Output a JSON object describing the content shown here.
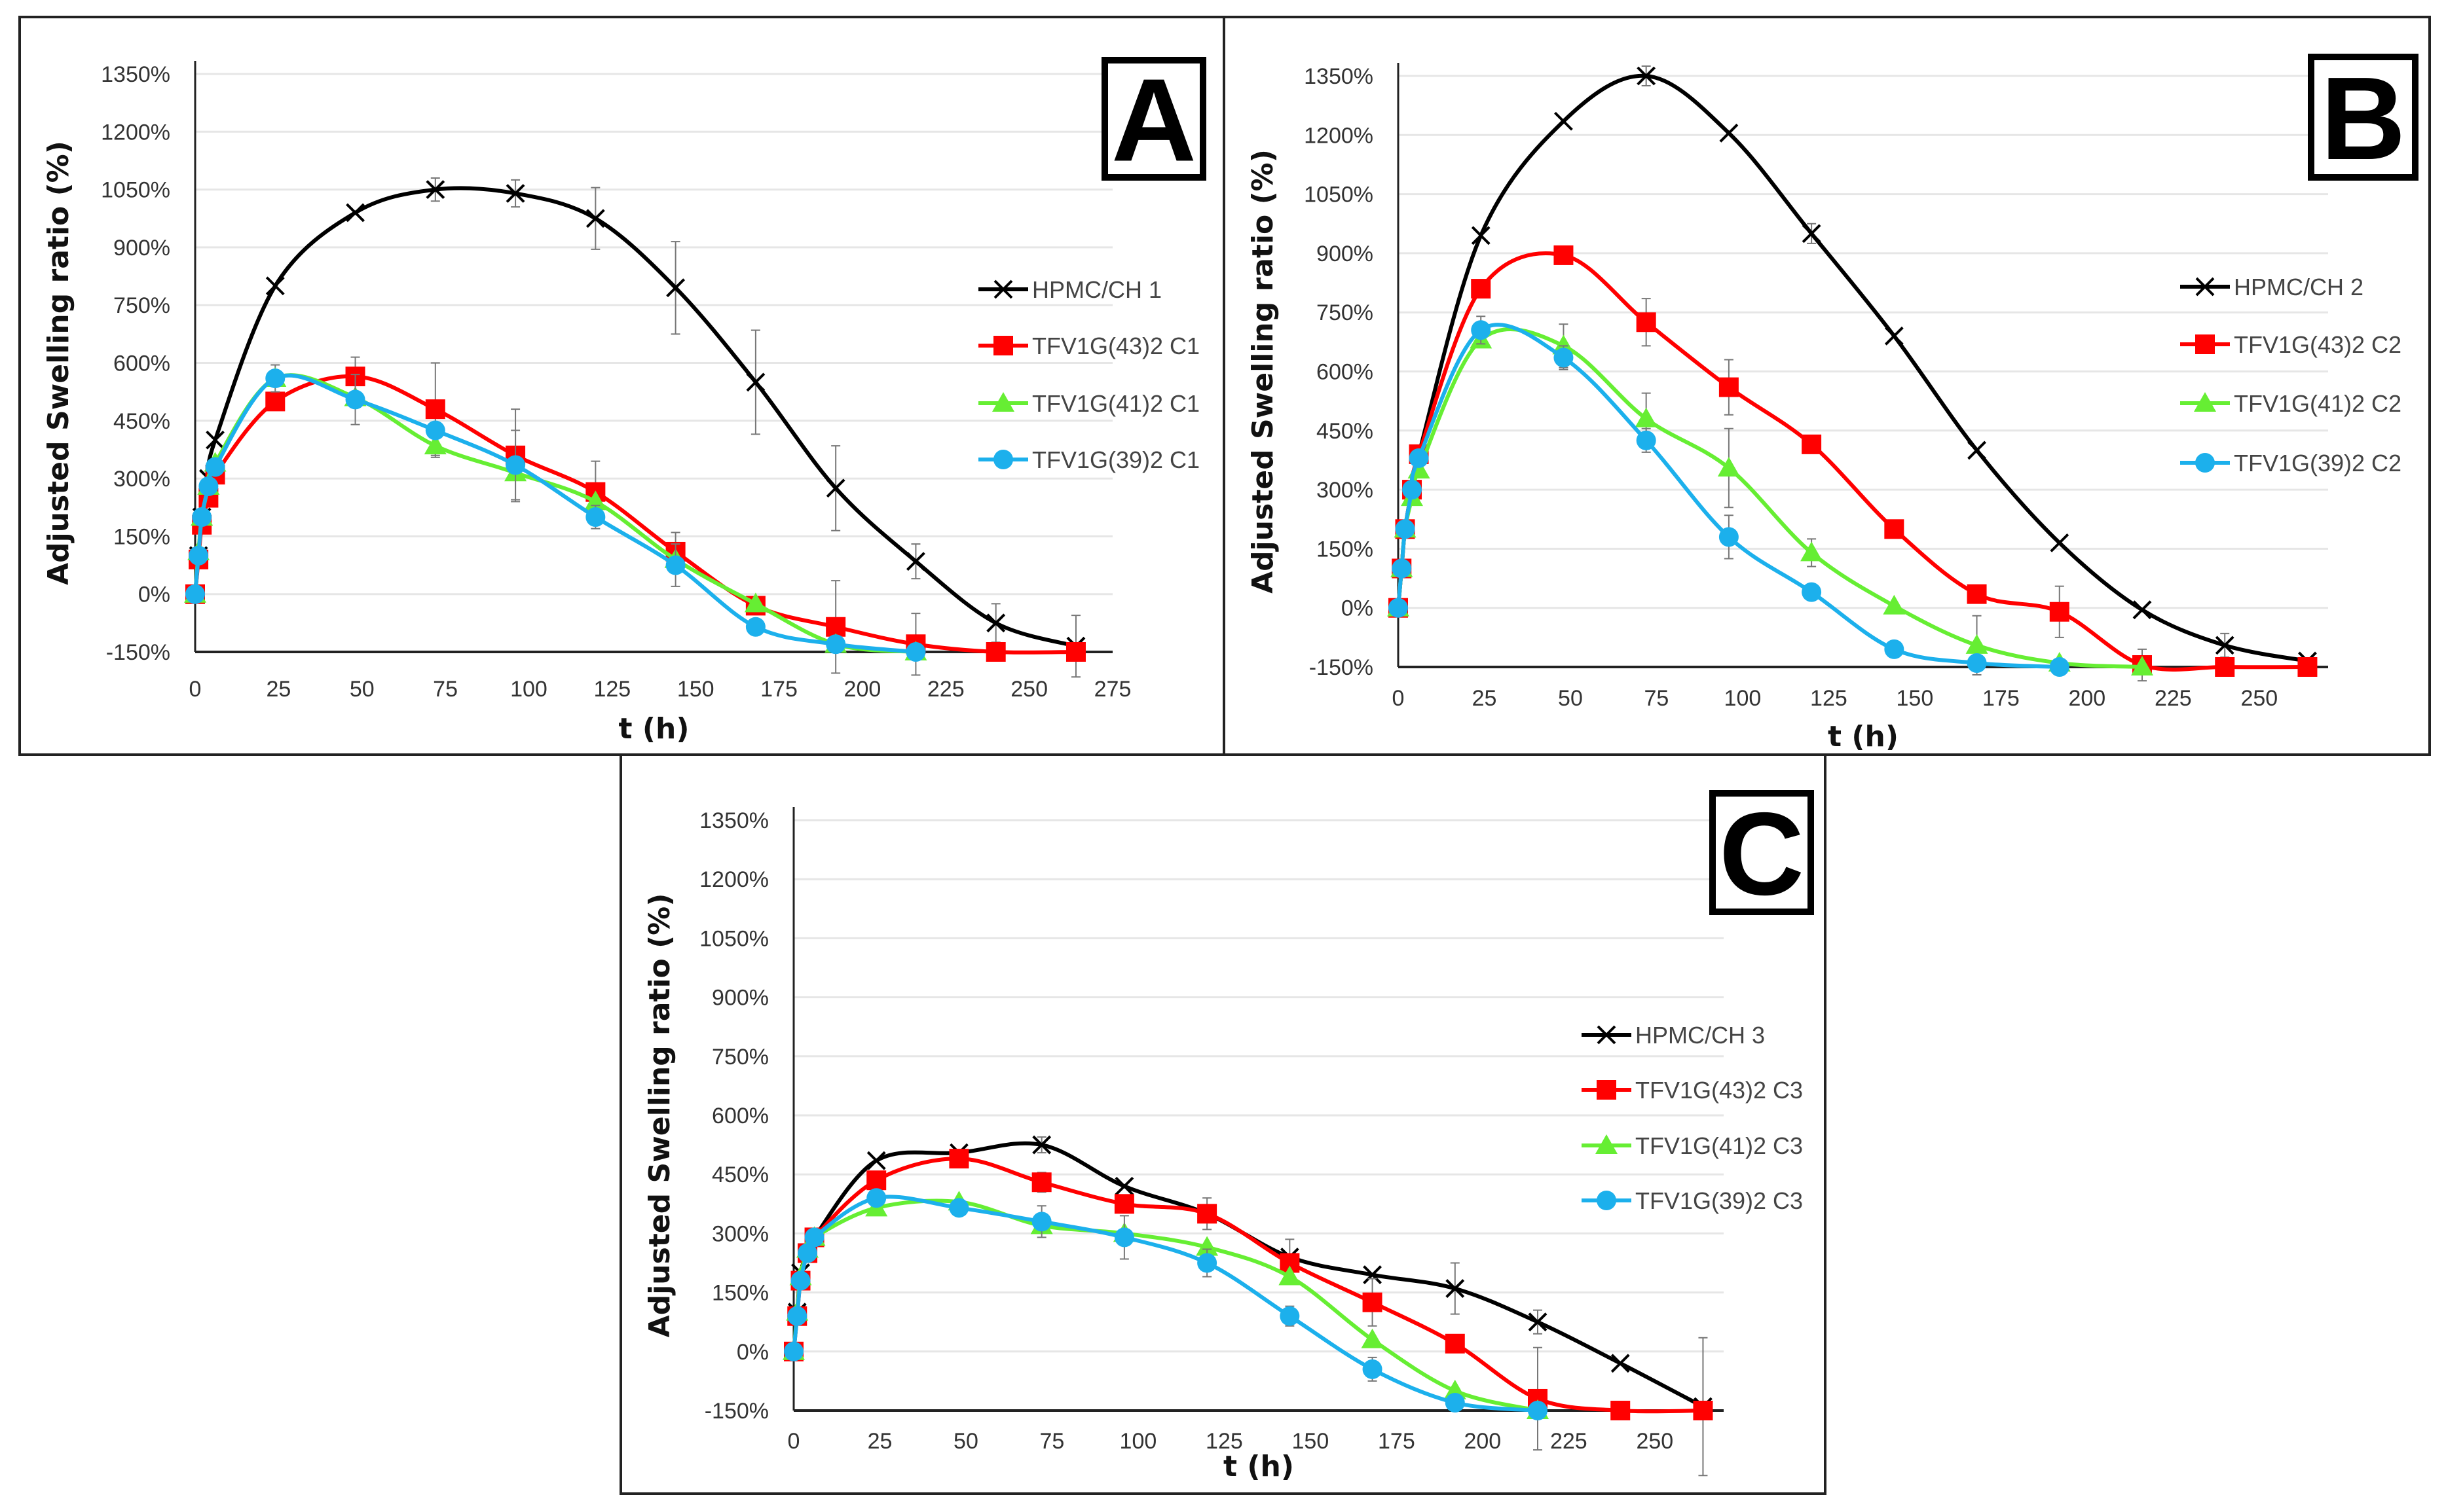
{
  "colors": {
    "HPMC": "#000000",
    "C43": "#ff0000",
    "C41": "#66ee33",
    "C39": "#1cb0ec",
    "grid": "#e6e6e6",
    "error": "#777777"
  },
  "chart_data": [
    {
      "type": "line",
      "panel_label": "A",
      "xlabel": "t (h)",
      "ylabel": "Adjusted Swelling ratio (%)",
      "xlim": [
        0,
        275
      ],
      "ylim": [
        -150,
        1350
      ],
      "xticks": [
        "0",
        "25",
        "50",
        "75",
        "100",
        "125",
        "150",
        "175",
        "200",
        "225",
        "250",
        "275"
      ],
      "xtick_values": [
        0,
        25,
        50,
        75,
        100,
        125,
        150,
        175,
        200,
        225,
        250,
        275
      ],
      "yticks": [
        "-150%",
        "0%",
        "150%",
        "300%",
        "450%",
        "600%",
        "750%",
        "900%",
        "1050%",
        "1200%",
        "1350%"
      ],
      "ytick_values": [
        -150,
        0,
        150,
        300,
        450,
        600,
        750,
        900,
        1050,
        1200,
        1350
      ],
      "grid": "horizontal",
      "legend_position": "right",
      "x": [
        0,
        1,
        2,
        4,
        6,
        24,
        48,
        72,
        96,
        120,
        144,
        168,
        192,
        216,
        240,
        264
      ],
      "series": [
        {
          "name": "HPMC/CH 1",
          "color_key": "HPMC",
          "marker": "x",
          "values": [
            0,
            100,
            200,
            300,
            400,
            800,
            990,
            1050,
            1040,
            975,
            795,
            550,
            275,
            85,
            -75,
            -135
          ],
          "error": [
            0,
            0,
            0,
            0,
            0,
            0,
            0,
            30,
            35,
            80,
            120,
            135,
            110,
            45,
            50,
            80
          ]
        },
        {
          "name": "TFV1G(43)2 C1",
          "color_key": "C43",
          "marker": "square",
          "values": [
            0,
            90,
            180,
            250,
            310,
            500,
            565,
            480,
            360,
            265,
            110,
            -30,
            -85,
            -130,
            -150,
            -150
          ],
          "error": [
            0,
            0,
            0,
            0,
            0,
            0,
            50,
            120,
            120,
            80,
            50,
            0,
            120,
            80,
            0,
            0
          ]
        },
        {
          "name": "TFV1G(41)2 C1",
          "color_key": "C41",
          "marker": "triangle",
          "values": [
            0,
            110,
            200,
            280,
            340,
            560,
            510,
            385,
            315,
            240,
            90,
            -25,
            -130,
            -150,
            null,
            null
          ],
          "error": [
            0,
            0,
            0,
            0,
            0,
            35,
            0,
            30,
            0,
            0,
            0,
            0,
            0,
            0,
            0,
            0
          ]
        },
        {
          "name": "TFV1G(39)2 C1",
          "color_key": "C39",
          "marker": "circle",
          "values": [
            0,
            100,
            200,
            280,
            330,
            560,
            505,
            425,
            335,
            200,
            75,
            -85,
            -130,
            -150,
            null,
            null
          ],
          "error": [
            0,
            0,
            0,
            0,
            0,
            0,
            65,
            0,
            90,
            30,
            55,
            0,
            0,
            0,
            0,
            0
          ]
        }
      ]
    },
    {
      "type": "line",
      "panel_label": "B",
      "xlabel": "t (h)",
      "ylabel": "Adjusted Swelling ratio (%)",
      "xlim": [
        0,
        270
      ],
      "ylim": [
        -150,
        1350
      ],
      "xticks": [
        "0",
        "25",
        "50",
        "75",
        "100",
        "125",
        "150",
        "175",
        "200",
        "225",
        "250"
      ],
      "xtick_values": [
        0,
        25,
        50,
        75,
        100,
        125,
        150,
        175,
        200,
        225,
        250
      ],
      "yticks": [
        "-150%",
        "0%",
        "150%",
        "300%",
        "450%",
        "600%",
        "750%",
        "900%",
        "1050%",
        "1200%",
        "1350%"
      ],
      "ytick_values": [
        -150,
        0,
        150,
        300,
        450,
        600,
        750,
        900,
        1050,
        1200,
        1350
      ],
      "grid": "horizontal",
      "legend_position": "right",
      "x": [
        0,
        1,
        2,
        4,
        6,
        24,
        48,
        72,
        96,
        120,
        144,
        168,
        192,
        216,
        240,
        264
      ],
      "series": [
        {
          "name": "HPMC/CH 2",
          "color_key": "HPMC",
          "marker": "x",
          "values": [
            0,
            100,
            200,
            300,
            390,
            945,
            1235,
            1350,
            1205,
            950,
            690,
            400,
            165,
            -5,
            -95,
            -135
          ],
          "error": [
            0,
            0,
            0,
            0,
            0,
            0,
            0,
            25,
            0,
            25,
            0,
            0,
            0,
            0,
            30,
            0
          ]
        },
        {
          "name": "TFV1G(43)2 C2",
          "color_key": "C43",
          "marker": "square",
          "values": [
            0,
            100,
            200,
            300,
            390,
            810,
            895,
            725,
            560,
            415,
            200,
            35,
            -10,
            -145,
            -150,
            -150
          ],
          "error": [
            0,
            0,
            0,
            0,
            0,
            0,
            0,
            60,
            70,
            0,
            0,
            0,
            65,
            40,
            0,
            0
          ]
        },
        {
          "name": "TFV1G(41)2 C2",
          "color_key": "C41",
          "marker": "triangle",
          "values": [
            0,
            100,
            200,
            280,
            350,
            680,
            665,
            480,
            355,
            140,
            5,
            -95,
            -140,
            -150,
            null,
            null
          ],
          "error": [
            0,
            0,
            0,
            0,
            0,
            0,
            55,
            65,
            100,
            35,
            0,
            75,
            0,
            0,
            0,
            0
          ]
        },
        {
          "name": "TFV1G(39)2 C2",
          "color_key": "C39",
          "marker": "circle",
          "values": [
            0,
            100,
            200,
            300,
            380,
            705,
            635,
            425,
            180,
            40,
            -105,
            -140,
            -150,
            null,
            null,
            null
          ],
          "error": [
            0,
            0,
            0,
            0,
            0,
            35,
            30,
            30,
            55,
            0,
            0,
            0,
            0,
            0,
            0,
            0
          ]
        }
      ]
    },
    {
      "type": "line",
      "panel_label": "C",
      "xlabel": "t (h)",
      "ylabel": "Adjusted Swelling ratio (%)",
      "xlim": [
        0,
        270
      ],
      "ylim": [
        -150,
        1350
      ],
      "xticks": [
        "0",
        "25",
        "50",
        "75",
        "100",
        "125",
        "150",
        "175",
        "200",
        "225",
        "250"
      ],
      "xtick_values": [
        0,
        25,
        50,
        75,
        100,
        125,
        150,
        175,
        200,
        225,
        250
      ],
      "yticks": [
        "-150%",
        "0%",
        "150%",
        "300%",
        "450%",
        "600%",
        "750%",
        "900%",
        "1050%",
        "1200%",
        "1350%"
      ],
      "ytick_values": [
        -150,
        0,
        150,
        300,
        450,
        600,
        750,
        900,
        1050,
        1200,
        1350
      ],
      "grid": "horizontal",
      "legend_position": "right",
      "x": [
        0,
        1,
        2,
        4,
        6,
        24,
        48,
        72,
        96,
        120,
        144,
        168,
        192,
        216,
        240,
        264
      ],
      "series": [
        {
          "name": "HPMC/CH 3",
          "color_key": "HPMC",
          "marker": "x",
          "values": [
            0,
            100,
            200,
            250,
            290,
            485,
            505,
            525,
            420,
            350,
            240,
            195,
            160,
            75,
            -30,
            -140
          ],
          "error": [
            0,
            0,
            0,
            0,
            0,
            0,
            0,
            20,
            0,
            0,
            45,
            0,
            65,
            30,
            0,
            175
          ]
        },
        {
          "name": "TFV1G(43)2 C3",
          "color_key": "C43",
          "marker": "square",
          "values": [
            0,
            90,
            180,
            250,
            290,
            435,
            490,
            430,
            375,
            350,
            225,
            125,
            20,
            -120,
            -150,
            -150
          ],
          "error": [
            0,
            0,
            0,
            0,
            0,
            0,
            0,
            25,
            0,
            40,
            0,
            60,
            0,
            130,
            0,
            0
          ]
        },
        {
          "name": "TFV1G(41)2 C3",
          "color_key": "C41",
          "marker": "triangle",
          "values": [
            0,
            100,
            190,
            260,
            290,
            365,
            380,
            320,
            300,
            265,
            190,
            30,
            -100,
            -150,
            null,
            null
          ],
          "error": [
            0,
            0,
            0,
            0,
            0,
            0,
            0,
            0,
            0,
            0,
            0,
            0,
            0,
            0,
            0,
            0
          ]
        },
        {
          "name": "TFV1G(39)2 C3",
          "color_key": "C39",
          "marker": "circle",
          "values": [
            0,
            90,
            180,
            250,
            290,
            390,
            365,
            330,
            290,
            225,
            90,
            -45,
            -130,
            -150,
            null,
            null
          ],
          "error": [
            0,
            0,
            0,
            0,
            0,
            0,
            0,
            40,
            55,
            35,
            25,
            30,
            0,
            0,
            0,
            0
          ]
        }
      ]
    }
  ]
}
